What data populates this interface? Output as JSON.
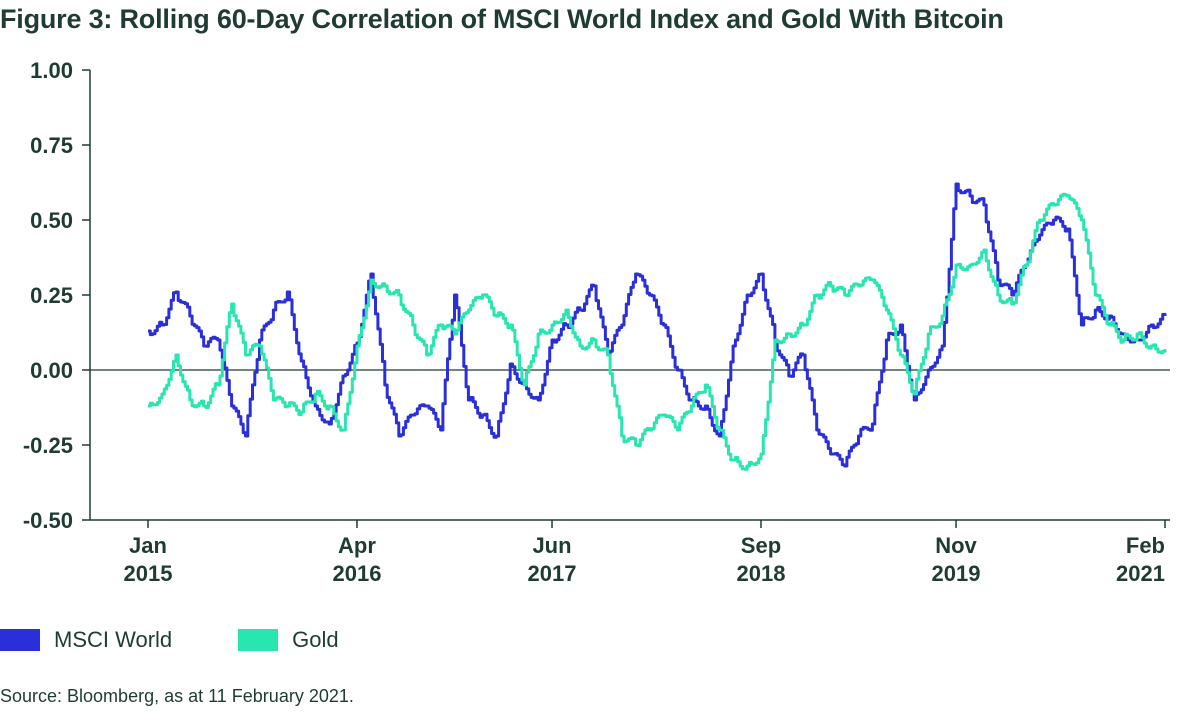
{
  "title": "Figure 3: Rolling 60-Day Correlation of MSCI World Index and Gold With Bitcoin",
  "source": "Source: Bloomberg, as at 11 February 2021.",
  "colors": {
    "msci": "#2b2fd9",
    "gold": "#28e6b0",
    "text": "#1f3b34",
    "axis": "#1f3b34"
  },
  "chart_data": {
    "type": "line",
    "title": "Figure 3: Rolling 60-Day Correlation of MSCI World Index and Gold With Bitcoin",
    "xlabel": "",
    "ylabel": "",
    "ylim": [
      -0.5,
      1.0
    ],
    "xlim": [
      "2015-01",
      "2021-02"
    ],
    "yticks": [
      "1.00",
      "0.75",
      "0.50",
      "0.25",
      "0.00",
      "-0.25",
      "-0.50"
    ],
    "ytick_values": [
      1.0,
      0.75,
      0.5,
      0.25,
      0.0,
      -0.25,
      -0.5
    ],
    "xticks": [
      {
        "line1": "Jan",
        "line2": "2015",
        "date": "2015-01"
      },
      {
        "line1": "Apr",
        "line2": "2016",
        "date": "2016-04"
      },
      {
        "line1": "Jun",
        "line2": "2017",
        "date": "2017-06"
      },
      {
        "line1": "Sep",
        "line2": "2018",
        "date": "2018-09"
      },
      {
        "line1": "Nov",
        "line2": "2019",
        "date": "2019-11"
      },
      {
        "line1": "Feb",
        "line2": "2021",
        "date": "2021-02"
      }
    ],
    "grid": false,
    "legend_position": "bottom-left",
    "series": [
      {
        "name": "MSCI World",
        "color": "#2b2fd9",
        "x": [
          "2015-01",
          "2015-02",
          "2015-03",
          "2015-04",
          "2015-05",
          "2015-06",
          "2015-07",
          "2015-08",
          "2015-09",
          "2015-10",
          "2015-11",
          "2015-12",
          "2016-01",
          "2016-02",
          "2016-03",
          "2016-04",
          "2016-05",
          "2016-06",
          "2016-07",
          "2016-08",
          "2016-09",
          "2016-10",
          "2016-11",
          "2016-12",
          "2017-01",
          "2017-02",
          "2017-03",
          "2017-04",
          "2017-05",
          "2017-06",
          "2017-07",
          "2017-08",
          "2017-09",
          "2017-10",
          "2017-11",
          "2017-12",
          "2018-01",
          "2018-02",
          "2018-03",
          "2018-04",
          "2018-05",
          "2018-06",
          "2018-07",
          "2018-08",
          "2018-09",
          "2018-10",
          "2018-11",
          "2018-12",
          "2019-01",
          "2019-02",
          "2019-03",
          "2019-04",
          "2019-05",
          "2019-06",
          "2019-07",
          "2019-08",
          "2019-09",
          "2019-10",
          "2019-11",
          "2019-12",
          "2020-01",
          "2020-02",
          "2020-03",
          "2020-04",
          "2020-05",
          "2020-06",
          "2020-07",
          "2020-08",
          "2020-09",
          "2020-10",
          "2020-11",
          "2020-12",
          "2021-01",
          "2021-02"
        ],
        "values": [
          0.13,
          0.15,
          0.26,
          0.18,
          0.08,
          0.1,
          -0.12,
          -0.22,
          0.1,
          0.2,
          0.26,
          0.03,
          -0.12,
          -0.18,
          -0.02,
          0.09,
          0.32,
          -0.05,
          -0.22,
          -0.15,
          -0.12,
          -0.2,
          0.25,
          -0.1,
          -0.15,
          -0.22,
          0.02,
          -0.05,
          -0.1,
          0.1,
          0.15,
          0.2,
          0.28,
          0.05,
          0.15,
          0.32,
          0.25,
          0.15,
          0.0,
          -0.1,
          -0.12,
          -0.22,
          0.08,
          0.25,
          0.32,
          0.1,
          -0.02,
          0.05,
          -0.2,
          -0.28,
          -0.32,
          -0.22,
          -0.18,
          0.1,
          0.15,
          -0.1,
          0.0,
          0.08,
          0.62,
          0.58,
          0.55,
          0.3,
          0.25,
          0.35,
          0.45,
          0.5,
          0.47,
          0.15,
          0.2,
          0.18,
          0.12,
          0.1,
          0.15,
          0.18
        ]
      },
      {
        "name": "Gold",
        "color": "#28e6b0",
        "x": [
          "2015-01",
          "2015-02",
          "2015-03",
          "2015-04",
          "2015-05",
          "2015-06",
          "2015-07",
          "2015-08",
          "2015-09",
          "2015-10",
          "2015-11",
          "2015-12",
          "2016-01",
          "2016-02",
          "2016-03",
          "2016-04",
          "2016-05",
          "2016-06",
          "2016-07",
          "2016-08",
          "2016-09",
          "2016-10",
          "2016-11",
          "2016-12",
          "2017-01",
          "2017-02",
          "2017-03",
          "2017-04",
          "2017-05",
          "2017-06",
          "2017-07",
          "2017-08",
          "2017-09",
          "2017-10",
          "2017-11",
          "2017-12",
          "2018-01",
          "2018-02",
          "2018-03",
          "2018-04",
          "2018-05",
          "2018-06",
          "2018-07",
          "2018-08",
          "2018-09",
          "2018-10",
          "2018-11",
          "2018-12",
          "2019-01",
          "2019-02",
          "2019-03",
          "2019-04",
          "2019-05",
          "2019-06",
          "2019-07",
          "2019-08",
          "2019-09",
          "2019-10",
          "2019-11",
          "2019-12",
          "2020-01",
          "2020-02",
          "2020-03",
          "2020-04",
          "2020-05",
          "2020-06",
          "2020-07",
          "2020-08",
          "2020-09",
          "2020-10",
          "2020-11",
          "2020-12",
          "2021-01",
          "2021-02"
        ],
        "values": [
          -0.12,
          -0.08,
          0.05,
          -0.1,
          -0.12,
          -0.05,
          0.22,
          0.05,
          0.08,
          -0.1,
          -0.12,
          -0.14,
          -0.08,
          -0.12,
          -0.2,
          0.08,
          0.3,
          0.28,
          0.25,
          0.15,
          0.05,
          0.15,
          0.12,
          0.2,
          0.25,
          0.18,
          0.15,
          -0.05,
          0.12,
          0.15,
          0.2,
          0.08,
          0.1,
          0.05,
          -0.22,
          -0.25,
          -0.2,
          -0.15,
          -0.2,
          -0.12,
          -0.05,
          -0.2,
          -0.3,
          -0.32,
          -0.28,
          0.1,
          0.12,
          0.15,
          0.25,
          0.28,
          0.25,
          0.28,
          0.3,
          0.2,
          0.05,
          -0.08,
          0.12,
          0.18,
          0.35,
          0.35,
          0.4,
          0.25,
          0.22,
          0.35,
          0.5,
          0.55,
          0.58,
          0.5,
          0.25,
          0.15,
          0.1,
          0.12,
          0.08,
          0.07
        ]
      }
    ]
  },
  "legend": [
    {
      "label": "MSCI World",
      "color": "#2b2fd9"
    },
    {
      "label": "Gold",
      "color": "#28e6b0"
    }
  ]
}
